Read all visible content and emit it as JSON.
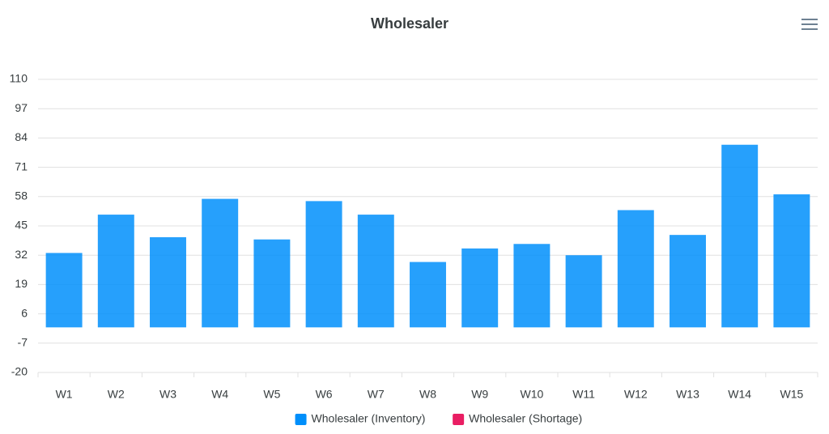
{
  "chart_data": {
    "type": "bar",
    "stacked": true,
    "title": "Wholesaler",
    "categories": [
      "W1",
      "W2",
      "W3",
      "W4",
      "W5",
      "W6",
      "W7",
      "W8",
      "W9",
      "W10",
      "W11",
      "W12",
      "W13",
      "W14",
      "W15"
    ],
    "series": [
      {
        "name": "Wholesaler (Inventory)",
        "color": "#008FFB",
        "values": [
          33,
          50,
          40,
          57,
          39,
          56,
          50,
          29,
          35,
          37,
          32,
          52,
          41,
          81,
          59
        ]
      },
      {
        "name": "Wholesaler (Shortage)",
        "color": "#E91E63",
        "values": [
          0,
          0,
          0,
          0,
          0,
          0,
          0,
          0,
          0,
          0,
          0,
          0,
          0,
          0,
          0
        ]
      }
    ],
    "ylim": [
      -20,
      110
    ],
    "yticks": [
      -20,
      -7,
      6,
      19,
      32,
      45,
      58,
      71,
      84,
      97,
      110
    ],
    "grid": true,
    "legend": "bottom"
  }
}
